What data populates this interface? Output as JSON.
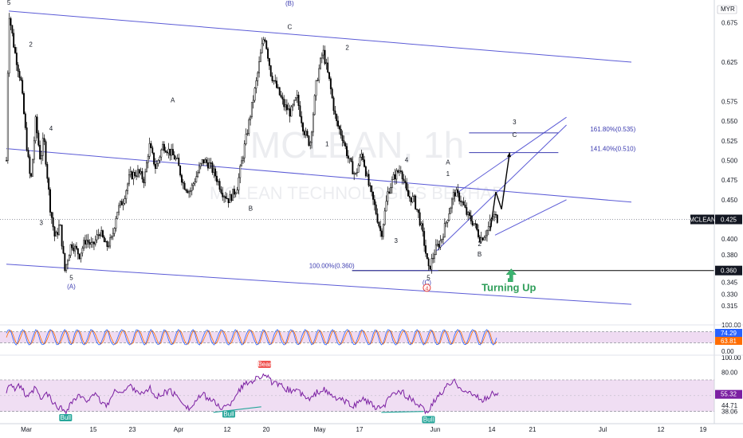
{
  "chart_data": {
    "type": "candlestick",
    "watermark": {
      "symbol": "MCLEAN, 1h",
      "name": "MCLEAN TECHNOLOGIES BERHAD"
    },
    "currency": "MYR",
    "price_axis": {
      "range": [
        0.305,
        0.7
      ],
      "ticks": [
        "0.675",
        "0.625",
        "0.575",
        "0.550",
        "0.525",
        "0.500",
        "0.475",
        "0.450",
        "0.400",
        "0.380",
        "0.345",
        "0.330",
        "0.315"
      ],
      "last_price_label": "0.425",
      "last_price_symbol": "MCLEAN",
      "support_label": "0.360"
    },
    "time_axis": {
      "labels": [
        "Mar",
        "15",
        "23",
        "Apr",
        "12",
        "20",
        "May",
        "17",
        "Jun",
        "14",
        "21",
        "Jul",
        "12",
        "19"
      ]
    },
    "price_path": [
      [
        0.0,
        0.5
      ],
      [
        0.3,
        0.69
      ],
      [
        1.0,
        0.64
      ],
      [
        1.8,
        0.6
      ],
      [
        2.5,
        0.52
      ],
      [
        3.0,
        0.47
      ],
      [
        3.6,
        0.55
      ],
      [
        4.2,
        0.5
      ],
      [
        4.6,
        0.53
      ],
      [
        5.4,
        0.44
      ],
      [
        6.0,
        0.4
      ],
      [
        6.6,
        0.42
      ],
      [
        7.2,
        0.36
      ],
      [
        8.0,
        0.395
      ],
      [
        9.0,
        0.38
      ],
      [
        9.8,
        0.4
      ],
      [
        10.6,
        0.39
      ],
      [
        11.5,
        0.41
      ],
      [
        12.3,
        0.39
      ],
      [
        13.0,
        0.4
      ],
      [
        13.6,
        0.435
      ],
      [
        14.4,
        0.45
      ],
      [
        15.2,
        0.48
      ],
      [
        16.2,
        0.485
      ],
      [
        17.0,
        0.475
      ],
      [
        17.6,
        0.52
      ],
      [
        18.4,
        0.49
      ],
      [
        19.3,
        0.52
      ],
      [
        20.2,
        0.51
      ],
      [
        21.0,
        0.5
      ],
      [
        21.8,
        0.47
      ],
      [
        22.6,
        0.46
      ],
      [
        23.4,
        0.48
      ],
      [
        24.2,
        0.5
      ],
      [
        25.0,
        0.495
      ],
      [
        25.8,
        0.48
      ],
      [
        26.6,
        0.46
      ],
      [
        27.4,
        0.45
      ],
      [
        28.4,
        0.465
      ],
      [
        29.2,
        0.51
      ],
      [
        30.0,
        0.555
      ],
      [
        30.8,
        0.6
      ],
      [
        31.4,
        0.64
      ],
      [
        31.8,
        0.66
      ],
      [
        32.6,
        0.61
      ],
      [
        33.4,
        0.59
      ],
      [
        34.2,
        0.57
      ],
      [
        35.0,
        0.56
      ],
      [
        35.8,
        0.58
      ],
      [
        36.6,
        0.54
      ],
      [
        37.4,
        0.52
      ],
      [
        38.2,
        0.6
      ],
      [
        39.0,
        0.64
      ],
      [
        39.8,
        0.6
      ],
      [
        40.6,
        0.55
      ],
      [
        41.4,
        0.53
      ],
      [
        42.2,
        0.5
      ],
      [
        43.0,
        0.48
      ],
      [
        43.8,
        0.51
      ],
      [
        44.6,
        0.47
      ],
      [
        45.4,
        0.44
      ],
      [
        46.2,
        0.405
      ],
      [
        47.0,
        0.46
      ],
      [
        47.8,
        0.48
      ],
      [
        48.6,
        0.49
      ],
      [
        49.4,
        0.455
      ],
      [
        50.2,
        0.45
      ],
      [
        50.8,
        0.43
      ],
      [
        51.4,
        0.4
      ],
      [
        52.0,
        0.36
      ],
      [
        52.8,
        0.385
      ],
      [
        53.6,
        0.4
      ],
      [
        54.4,
        0.43
      ],
      [
        55.2,
        0.46
      ],
      [
        56.0,
        0.45
      ],
      [
        56.8,
        0.43
      ],
      [
        57.6,
        0.42
      ],
      [
        58.4,
        0.4
      ],
      [
        59.2,
        0.41
      ],
      [
        60.0,
        0.43
      ],
      [
        60.6,
        0.425
      ]
    ],
    "channels": [
      {
        "name": "",
        "lines": [
          {
            "from": [
              0.3,
              0.69
            ],
            "to": [
              77.0,
              0.625
            ]
          },
          {
            "from": [
              0.0,
              0.515
            ],
            "to": [
              77.0,
              0.447
            ]
          },
          {
            "from": [
              0.0,
              0.368
            ],
            "to": [
              77.0,
              0.317
            ]
          }
        ]
      },
      {
        "name": "",
        "lines": [
          {
            "from": [
              53.0,
              0.385
            ],
            "to": [
              69.0,
              0.545
            ]
          },
          {
            "from": [
              55.0,
              0.455
            ],
            "to": [
              69.0,
              0.555
            ]
          },
          {
            "from": [
              60.2,
              0.405
            ],
            "to": [
              69.0,
              0.45
            ]
          }
        ]
      }
    ],
    "fib_levels": [
      {
        "label": "161.80%(0.535)",
        "value": 0.535
      },
      {
        "label": "141.40%(0.510)",
        "value": 0.51
      },
      {
        "label": "100.00%(0.360)",
        "value": 0.36
      }
    ],
    "support_value": 0.36,
    "wave_labels": [
      {
        "text": "5",
        "x": 0.3,
        "y": 0.698,
        "color": "dark"
      },
      {
        "text": "2",
        "x": 3.0,
        "y": 0.645,
        "color": "dark"
      },
      {
        "text": "4",
        "x": 5.5,
        "y": 0.538,
        "color": "dark"
      },
      {
        "text": "3",
        "x": 4.3,
        "y": 0.418,
        "color": "dark"
      },
      {
        "text": "5",
        "x": 8.0,
        "y": 0.348,
        "color": "dark"
      },
      {
        "text": "(A)",
        "x": 8.0,
        "y": 0.337,
        "color": "blue"
      },
      {
        "text": "A",
        "x": 20.5,
        "y": 0.574,
        "color": "dark"
      },
      {
        "text": "B",
        "x": 30.1,
        "y": 0.436,
        "color": "dark"
      },
      {
        "text": "(B)",
        "x": 34.9,
        "y": 0.697,
        "color": "blue"
      },
      {
        "text": "C",
        "x": 34.9,
        "y": 0.667,
        "color": "dark"
      },
      {
        "text": "2",
        "x": 42.0,
        "y": 0.641,
        "color": "dark"
      },
      {
        "text": "1",
        "x": 39.5,
        "y": 0.518,
        "color": "dark"
      },
      {
        "text": "4",
        "x": 49.3,
        "y": 0.498,
        "color": "dark"
      },
      {
        "text": "3",
        "x": 48.0,
        "y": 0.395,
        "color": "dark"
      },
      {
        "text": "5",
        "x": 52.0,
        "y": 0.348,
        "color": "dark"
      },
      {
        "text": "(C)",
        "x": 51.8,
        "y": 0.342,
        "color": "blue"
      },
      {
        "text": "A",
        "x": 54.4,
        "y": 0.495,
        "color": "dark"
      },
      {
        "text": "1",
        "x": 54.4,
        "y": 0.48,
        "color": "dark"
      },
      {
        "text": "2",
        "x": 58.3,
        "y": 0.391,
        "color": "dark"
      },
      {
        "text": "B",
        "x": 58.3,
        "y": 0.378,
        "color": "dark"
      },
      {
        "text": "3",
        "x": 62.6,
        "y": 0.546,
        "color": "dark"
      },
      {
        "text": "C",
        "x": 62.6,
        "y": 0.53,
        "color": "dark"
      }
    ],
    "circled_label": {
      "text": "4",
      "x": 51.8,
      "y": 0.335
    },
    "projection_path": [
      [
        59.6,
        0.41
      ],
      [
        60.3,
        0.46
      ],
      [
        61.0,
        0.438
      ],
      [
        62.0,
        0.51
      ]
    ],
    "annotation": {
      "text": "Turning Up",
      "x": 62.0,
      "y": 0.34
    },
    "stoch_rsi": {
      "range": [
        0,
        100
      ],
      "ticks": [
        "100.00",
        "0.00"
      ],
      "k_label": "74.29",
      "d_label": "63.81",
      "k_color": "#2962ff",
      "d_color": "#ff6d00",
      "band": [
        20,
        80
      ]
    },
    "rsi": {
      "range": [
        30,
        90
      ],
      "ticks": [
        "100.00",
        "80.00",
        "44.71",
        "38.06"
      ],
      "value_label": "55.32",
      "color": "#7b1fa2",
      "band": [
        38.06,
        72
      ],
      "path": [
        [
          0.0,
          60
        ],
        [
          0.4,
          70
        ],
        [
          1.0,
          62
        ],
        [
          1.8,
          66
        ],
        [
          2.5,
          52
        ],
        [
          3.0,
          56
        ],
        [
          3.6,
          64
        ],
        [
          4.2,
          50
        ],
        [
          5.0,
          58
        ],
        [
          5.8,
          46
        ],
        [
          6.6,
          42
        ],
        [
          7.3,
          38
        ],
        [
          8.0,
          48
        ],
        [
          9.0,
          55
        ],
        [
          9.8,
          48
        ],
        [
          10.6,
          58
        ],
        [
          11.5,
          50
        ],
        [
          12.3,
          44
        ],
        [
          13.0,
          54
        ],
        [
          13.6,
          62
        ],
        [
          14.4,
          58
        ],
        [
          15.2,
          66
        ],
        [
          16.2,
          60
        ],
        [
          17.0,
          56
        ],
        [
          17.6,
          64
        ],
        [
          18.4,
          52
        ],
        [
          19.3,
          58
        ],
        [
          20.2,
          60
        ],
        [
          21.0,
          54
        ],
        [
          21.8,
          48
        ],
        [
          22.6,
          40
        ],
        [
          23.4,
          50
        ],
        [
          24.2,
          56
        ],
        [
          25.0,
          52
        ],
        [
          25.8,
          46
        ],
        [
          26.6,
          42
        ],
        [
          27.4,
          44
        ],
        [
          28.4,
          58
        ],
        [
          29.2,
          66
        ],
        [
          30.0,
          70
        ],
        [
          30.8,
          74
        ],
        [
          31.4,
          76
        ],
        [
          31.8,
          79
        ],
        [
          32.6,
          70
        ],
        [
          33.4,
          66
        ],
        [
          34.2,
          64
        ],
        [
          35.0,
          60
        ],
        [
          35.8,
          62
        ],
        [
          36.6,
          54
        ],
        [
          37.4,
          50
        ],
        [
          38.2,
          58
        ],
        [
          39.0,
          62
        ],
        [
          39.8,
          56
        ],
        [
          40.6,
          52
        ],
        [
          41.4,
          50
        ],
        [
          42.2,
          46
        ],
        [
          43.0,
          44
        ],
        [
          43.8,
          52
        ],
        [
          44.6,
          48
        ],
        [
          45.4,
          42
        ],
        [
          46.2,
          40
        ],
        [
          47.0,
          50
        ],
        [
          47.8,
          58
        ],
        [
          48.6,
          60
        ],
        [
          49.4,
          54
        ],
        [
          50.2,
          48
        ],
        [
          50.8,
          44
        ],
        [
          51.4,
          40
        ],
        [
          52.0,
          38
        ],
        [
          52.8,
          50
        ],
        [
          53.6,
          58
        ],
        [
          54.4,
          66
        ],
        [
          55.2,
          70
        ],
        [
          56.0,
          64
        ],
        [
          56.8,
          58
        ],
        [
          57.6,
          56
        ],
        [
          58.4,
          50
        ],
        [
          59.2,
          52
        ],
        [
          60.0,
          58
        ],
        [
          60.6,
          56
        ]
      ]
    },
    "signals": [
      {
        "text": "Bull",
        "x": 7.3,
        "y": 36,
        "panel": "rsi",
        "color": "#26a69a"
      },
      {
        "text": "Bull",
        "x": 27.4,
        "y": 40,
        "panel": "rsi",
        "color": "#26a69a"
      },
      {
        "text": "Bear",
        "x": 31.8,
        "y": 84,
        "panel": "rsi",
        "color": "#ef5350"
      },
      {
        "text": "Bull",
        "x": 52.0,
        "y": 34,
        "panel": "rsi",
        "color": "#26a69a"
      }
    ],
    "colors": {
      "channel": "#5b5bd6",
      "fib": "#3b3bb0",
      "candle": "#000000",
      "band_fill": "#e1bee7",
      "support": "#000000"
    }
  }
}
